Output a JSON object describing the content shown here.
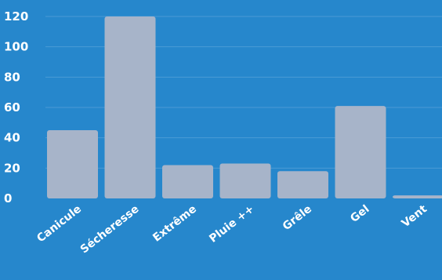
{
  "colors": {
    "background": "#2687cc",
    "bar": "#a7b4c9",
    "grid": "#4a9ad6",
    "text": "#ffffff"
  },
  "chart_data": {
    "type": "bar",
    "title": "",
    "xlabel": "",
    "ylabel": "",
    "categories": [
      "Canicule",
      "Sécheresse",
      "Extrême",
      "Pluie ++",
      "Grêle",
      "Gel",
      "Vent"
    ],
    "values": [
      45,
      120,
      22,
      23,
      18,
      61,
      2
    ],
    "ylim": [
      0,
      120
    ],
    "yticks": [
      "0",
      "20",
      "40",
      "60",
      "80",
      "100",
      "120"
    ],
    "grid": true,
    "legend": "none"
  }
}
